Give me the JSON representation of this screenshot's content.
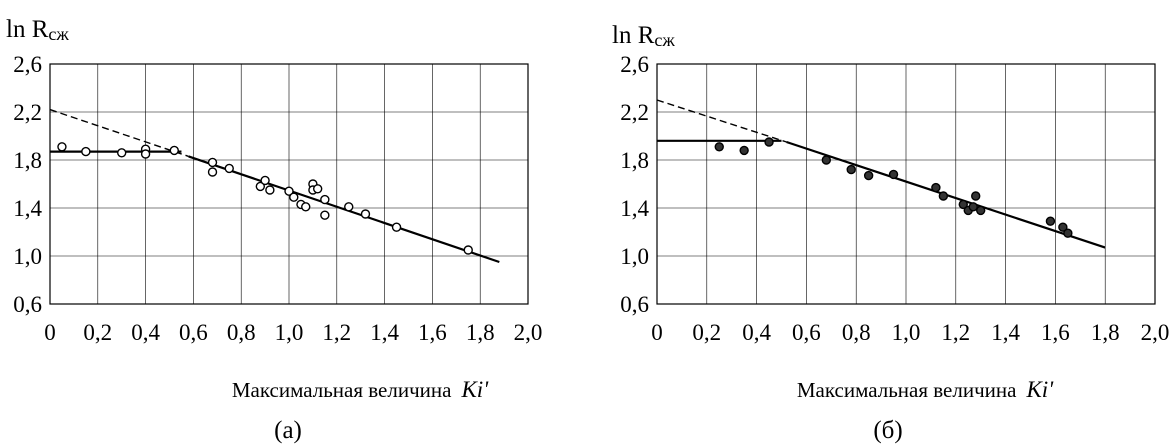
{
  "chart_data": [
    {
      "type": "scatter",
      "panel_label": "(а)",
      "ylabel": "ln R",
      "ylabel_sub": "сж",
      "xlabel": "Максимальная величина",
      "xlabel_symbol": "Ki'",
      "xlim": [
        0,
        2.0
      ],
      "ylim": [
        0.6,
        2.6
      ],
      "x_ticks": [
        "0",
        "0,2",
        "0,4",
        "0,6",
        "0,8",
        "1,0",
        "1,2",
        "1,4",
        "1,6",
        "1,8",
        "2,0"
      ],
      "y_ticks": [
        "0,6",
        "1,0",
        "1,4",
        "1,8",
        "2,2",
        "2,6"
      ],
      "grid": true,
      "points": [
        [
          0.05,
          1.91
        ],
        [
          0.15,
          1.87
        ],
        [
          0.3,
          1.86
        ],
        [
          0.4,
          1.89
        ],
        [
          0.4,
          1.85
        ],
        [
          0.52,
          1.88
        ],
        [
          0.68,
          1.78
        ],
        [
          0.68,
          1.7
        ],
        [
          0.75,
          1.73
        ],
        [
          0.88,
          1.58
        ],
        [
          0.9,
          1.63
        ],
        [
          0.92,
          1.55
        ],
        [
          1.0,
          1.54
        ],
        [
          1.02,
          1.49
        ],
        [
          1.05,
          1.43
        ],
        [
          1.07,
          1.41
        ],
        [
          1.1,
          1.6
        ],
        [
          1.1,
          1.55
        ],
        [
          1.12,
          1.56
        ],
        [
          1.15,
          1.47
        ],
        [
          1.15,
          1.34
        ],
        [
          1.25,
          1.41
        ],
        [
          1.32,
          1.35
        ],
        [
          1.45,
          1.24
        ],
        [
          1.75,
          1.05
        ]
      ],
      "fit_lines": [
        {
          "style": "solid",
          "x": [
            0.0,
            0.55
          ],
          "y": [
            1.87,
            1.87
          ]
        },
        {
          "style": "dashed",
          "x": [
            0.0,
            0.58
          ],
          "y": [
            2.22,
            1.83
          ]
        },
        {
          "style": "solid",
          "x": [
            0.58,
            1.88
          ],
          "y": [
            1.83,
            0.95
          ]
        }
      ]
    },
    {
      "type": "scatter",
      "panel_label": "(б)",
      "ylabel": "ln R",
      "ylabel_sub": "сж",
      "xlabel": "Максимальная величина",
      "xlabel_symbol": "Ki'",
      "xlim": [
        0,
        2.0
      ],
      "ylim": [
        0.6,
        2.6
      ],
      "x_ticks": [
        "0",
        "0,2",
        "0,4",
        "0,6",
        "0,8",
        "1,0",
        "1,2",
        "1,4",
        "1,6",
        "1,8",
        "2,0"
      ],
      "y_ticks": [
        "0,6",
        "1,0",
        "1,4",
        "1,8",
        "2,2",
        "2,6"
      ],
      "grid": true,
      "points": [
        [
          0.25,
          1.91
        ],
        [
          0.35,
          1.88
        ],
        [
          0.45,
          1.95
        ],
        [
          0.68,
          1.8
        ],
        [
          0.78,
          1.72
        ],
        [
          0.85,
          1.67
        ],
        [
          0.95,
          1.68
        ],
        [
          1.12,
          1.57
        ],
        [
          1.15,
          1.5
        ],
        [
          1.23,
          1.43
        ],
        [
          1.25,
          1.38
        ],
        [
          1.27,
          1.41
        ],
        [
          1.28,
          1.5
        ],
        [
          1.3,
          1.38
        ],
        [
          1.58,
          1.29
        ],
        [
          1.63,
          1.24
        ],
        [
          1.65,
          1.19
        ]
      ],
      "fit_lines": [
        {
          "style": "solid",
          "x": [
            0.0,
            0.5
          ],
          "y": [
            1.96,
            1.96
          ]
        },
        {
          "style": "dashed",
          "x": [
            0.0,
            0.52
          ],
          "y": [
            2.3,
            1.95
          ]
        },
        {
          "style": "solid",
          "x": [
            0.52,
            1.8
          ],
          "y": [
            1.95,
            1.07
          ]
        }
      ]
    }
  ]
}
